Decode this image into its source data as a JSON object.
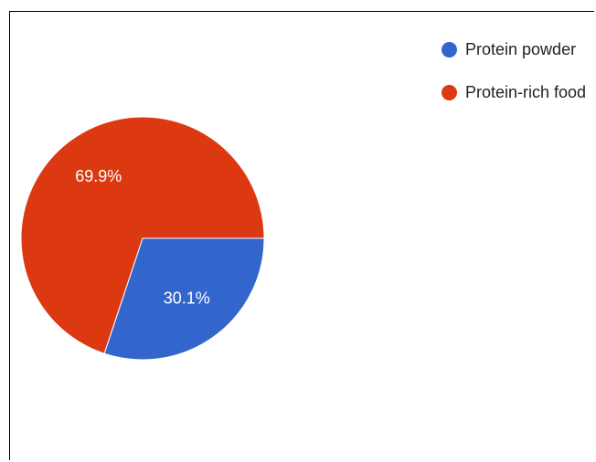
{
  "chart_data": {
    "type": "pie",
    "title": "",
    "legend_position": "top-right",
    "slices": [
      {
        "name": "Protein powder",
        "value": 30.1,
        "label": "30.1%",
        "color": "#3366cc"
      },
      {
        "name": "Protein-rich food",
        "value": 69.9,
        "label": "69.9%",
        "color": "#dc3912"
      }
    ],
    "slice_label_color": "#ffffff"
  }
}
